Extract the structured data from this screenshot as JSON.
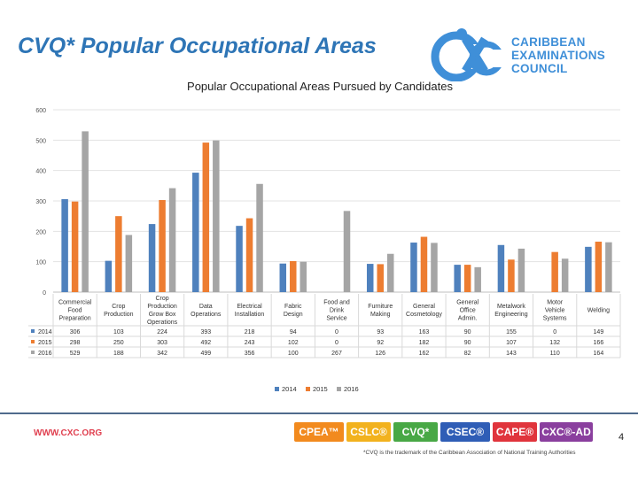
{
  "slide": {
    "title": "CVQ* Popular Occupational Areas",
    "page_number": "4",
    "footer_url": "WWW.CXC.ORG",
    "footer_note": "*CVQ is the trademark of the Caribbean Association of National Training Authorities"
  },
  "logo": {
    "line1": "CARIBBEAN",
    "line2": "EXAMINATIONS",
    "line3": "COUNCIL",
    "mark_text": "CXC",
    "color": "#3f8fd8"
  },
  "badges": [
    {
      "label": "CPEA™",
      "color": "#f28a1e"
    },
    {
      "label": "CSLC®",
      "color": "#f2b21e"
    },
    {
      "label": "CVQ*",
      "color": "#48a845"
    },
    {
      "label": "CSEC®",
      "color": "#2f5db6"
    },
    {
      "label": "CAPE®",
      "color": "#e0343c"
    },
    {
      "label": "CXC®-AD",
      "color": "#8a3f9e"
    }
  ],
  "chart_data": {
    "type": "bar",
    "title": "Popular Occupational Areas Pursued by Candidates",
    "categories": [
      "Commercial Food Preparation",
      "Crop Production",
      "Crop Production Grow Box Operations",
      "Data Operations",
      "Electrical Installation",
      "Fabric Design",
      "Food and Drink Service",
      "Furniture Making",
      "General Cosmetology",
      "General Office Admin.",
      "Metalwork Engineering",
      "Motor Vehicle Systems",
      "Welding"
    ],
    "series": [
      {
        "name": "2014",
        "color": "#4f81bd",
        "values": [
          306,
          103,
          224,
          393,
          218,
          94,
          0,
          93,
          163,
          90,
          155,
          0,
          149
        ]
      },
      {
        "name": "2015",
        "color": "#ed7d31",
        "values": [
          298,
          250,
          303,
          492,
          243,
          102,
          0,
          92,
          182,
          90,
          107,
          132,
          166
        ]
      },
      {
        "name": "2016",
        "color": "#a5a5a5",
        "values": [
          529,
          188,
          342,
          499,
          356,
          100,
          267,
          126,
          162,
          82,
          143,
          110,
          164
        ]
      }
    ],
    "yticks": [
      0,
      100,
      200,
      300,
      400,
      500,
      600
    ],
    "ylim": [
      0,
      600
    ],
    "grid": true,
    "legend": "bottom",
    "data_table": true
  }
}
